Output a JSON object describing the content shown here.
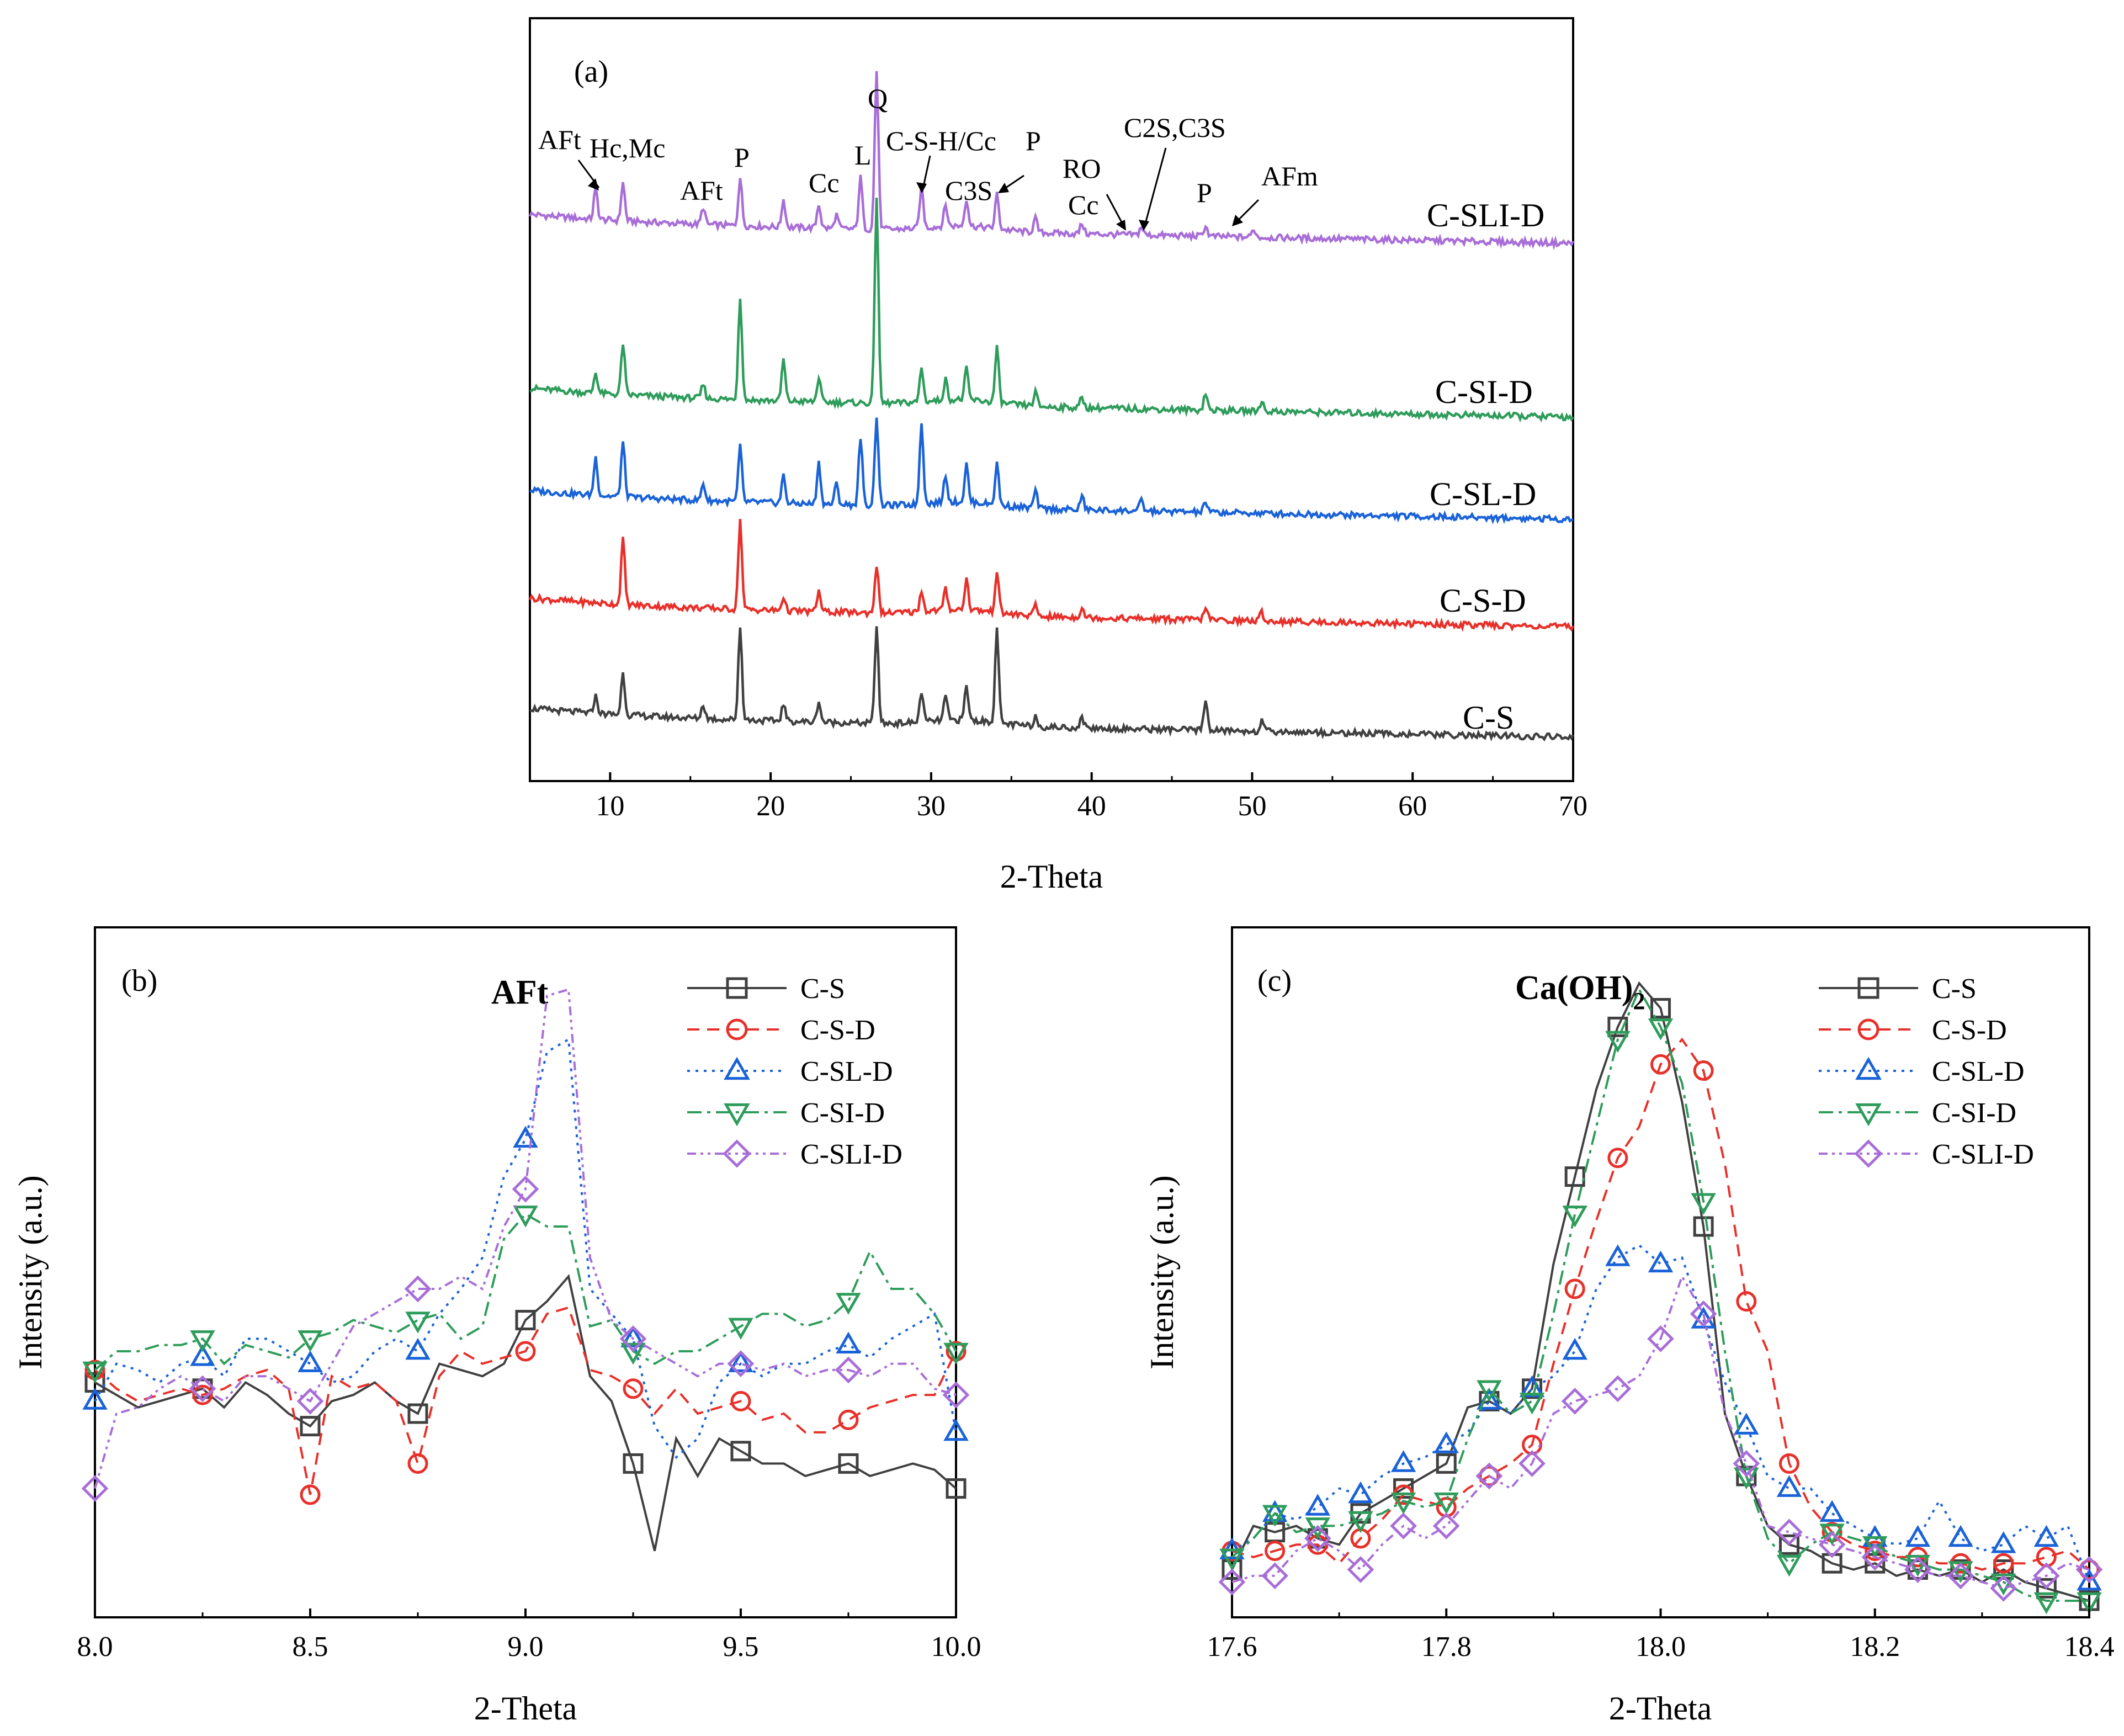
{
  "colors": {
    "C-S": "#404040",
    "C-S-D": "#e8302a",
    "C-SL-D": "#1a62d8",
    "C-SI-D": "#2e9c5a",
    "C-SLI-D": "#a86ed8"
  },
  "chart_data": [
    {
      "id": "a",
      "type": "line",
      "panel_label": "(a)",
      "xlabel": "2-Theta",
      "ylabel": "",
      "xlim": [
        5,
        70
      ],
      "xticks": [
        10,
        20,
        30,
        40,
        50,
        60,
        70
      ],
      "series": [
        {
          "name": "C-SLI-D",
          "baseline": 4,
          "slope": 0.3
        },
        {
          "name": "C-SI-D",
          "baseline": 3,
          "slope": 0.3
        },
        {
          "name": "C-SL-D",
          "baseline": 2,
          "slope": 0.3
        },
        {
          "name": "C-S-D",
          "baseline": 1,
          "slope": 0.3
        },
        {
          "name": "C-S",
          "baseline": 0,
          "slope": 0.3
        }
      ],
      "peaks": {
        "C-SLI-D": [
          [
            9.1,
            0.45
          ],
          [
            10.8,
            0.55
          ],
          [
            15.8,
            0.25
          ],
          [
            18.1,
            0.7
          ],
          [
            20.8,
            0.4
          ],
          [
            23.0,
            0.35
          ],
          [
            24.1,
            0.2
          ],
          [
            25.6,
            0.75
          ],
          [
            26.6,
            2.3
          ],
          [
            29.4,
            0.6
          ],
          [
            30.9,
            0.3
          ],
          [
            32.2,
            0.4
          ],
          [
            34.1,
            0.5
          ],
          [
            36.5,
            0.2
          ],
          [
            39.4,
            0.15
          ],
          [
            43.1,
            0.12
          ],
          [
            47.1,
            0.15
          ],
          [
            50.1,
            0.12
          ]
        ],
        "C-SI-D": [
          [
            9.1,
            0.3
          ],
          [
            10.8,
            0.75
          ],
          [
            15.8,
            0.2
          ],
          [
            18.1,
            1.5
          ],
          [
            20.8,
            0.6
          ],
          [
            23.0,
            0.35
          ],
          [
            26.6,
            3.0
          ],
          [
            29.4,
            0.5
          ],
          [
            30.9,
            0.3
          ],
          [
            32.2,
            0.45
          ],
          [
            34.1,
            0.8
          ],
          [
            36.5,
            0.2
          ],
          [
            39.4,
            0.15
          ],
          [
            47.1,
            0.25
          ],
          [
            50.6,
            0.15
          ]
        ],
        "C-SL-D": [
          [
            9.1,
            0.55
          ],
          [
            10.8,
            0.8
          ],
          [
            15.8,
            0.25
          ],
          [
            18.1,
            0.8
          ],
          [
            20.8,
            0.4
          ],
          [
            23.0,
            0.6
          ],
          [
            24.1,
            0.3
          ],
          [
            25.6,
            1.0
          ],
          [
            26.6,
            1.3
          ],
          [
            29.4,
            1.2
          ],
          [
            30.9,
            0.4
          ],
          [
            32.2,
            0.55
          ],
          [
            34.1,
            0.6
          ],
          [
            36.5,
            0.25
          ],
          [
            39.4,
            0.2
          ],
          [
            43.1,
            0.15
          ],
          [
            47.1,
            0.15
          ]
        ],
        "C-S-D": [
          [
            10.8,
            0.95
          ],
          [
            18.1,
            1.3
          ],
          [
            20.8,
            0.2
          ],
          [
            23.0,
            0.3
          ],
          [
            26.6,
            0.7
          ],
          [
            29.4,
            0.3
          ],
          [
            30.9,
            0.3
          ],
          [
            32.2,
            0.45
          ],
          [
            34.1,
            0.6
          ],
          [
            36.5,
            0.15
          ],
          [
            39.4,
            0.15
          ],
          [
            47.1,
            0.2
          ],
          [
            50.6,
            0.12
          ]
        ],
        "C-S": [
          [
            9.1,
            0.25
          ],
          [
            10.8,
            0.6
          ],
          [
            15.8,
            0.2
          ],
          [
            18.1,
            1.35
          ],
          [
            20.8,
            0.25
          ],
          [
            23.0,
            0.3
          ],
          [
            26.6,
            1.4
          ],
          [
            29.4,
            0.45
          ],
          [
            30.9,
            0.35
          ],
          [
            32.2,
            0.5
          ],
          [
            34.1,
            1.35
          ],
          [
            36.5,
            0.15
          ],
          [
            39.4,
            0.15
          ],
          [
            47.1,
            0.45
          ],
          [
            50.6,
            0.15
          ]
        ]
      },
      "annotations": [
        "AFt",
        "Hc,Mc",
        "AFt",
        "P",
        "Cc",
        "L",
        "Q",
        "C-S-H/Cc",
        "P",
        "C3S",
        "RO",
        "Cc",
        "C2S,C3S",
        "P",
        "AFm"
      ]
    },
    {
      "id": "b",
      "type": "line",
      "panel_label": "(b)",
      "title": "AFt",
      "xlabel": "2-Theta",
      "ylabel": "Intensity (a.u.)",
      "xlim": [
        8.0,
        10.0
      ],
      "ylim": [
        0,
        100
      ],
      "xticks": [
        8.0,
        8.5,
        9.0,
        9.5,
        10.0
      ],
      "x": [
        8.0,
        8.05,
        8.1,
        8.15,
        8.2,
        8.25,
        8.3,
        8.35,
        8.4,
        8.45,
        8.5,
        8.55,
        8.6,
        8.65,
        8.7,
        8.75,
        8.8,
        8.85,
        8.9,
        8.95,
        9.0,
        9.05,
        9.1,
        9.15,
        9.2,
        9.25,
        9.3,
        9.35,
        9.4,
        9.45,
        9.5,
        9.55,
        9.6,
        9.65,
        9.7,
        9.75,
        9.8,
        9.85,
        9.9,
        9.95,
        10.0
      ],
      "series": [
        {
          "name": "C-S",
          "values": [
            35,
            33,
            31,
            32,
            33,
            34,
            31,
            35,
            33,
            30,
            28,
            32,
            33,
            35,
            32,
            30,
            38,
            37,
            36,
            38,
            45,
            48,
            52,
            36,
            32,
            22,
            8,
            26,
            20,
            26,
            24,
            22,
            22,
            20,
            21,
            22,
            20,
            21,
            22,
            21,
            18
          ]
        },
        {
          "name": "C-S-D",
          "values": [
            37,
            34,
            32,
            33,
            34,
            33,
            34,
            36,
            37,
            34,
            17,
            36,
            34,
            35,
            32,
            22,
            36,
            40,
            38,
            39,
            40,
            46,
            47,
            37,
            36,
            34,
            30,
            34,
            30,
            31,
            32,
            29,
            30,
            27,
            27,
            29,
            31,
            32,
            33,
            33,
            40
          ]
        },
        {
          "name": "C-SL-D",
          "values": [
            32,
            38,
            37,
            35,
            38,
            39,
            36,
            42,
            42,
            40,
            38,
            35,
            36,
            40,
            42,
            40,
            46,
            50,
            55,
            68,
            74,
            88,
            90,
            50,
            46,
            42,
            28,
            23,
            26,
            35,
            38,
            36,
            38,
            38,
            40,
            41,
            39,
            42,
            44,
            46,
            27
          ]
        },
        {
          "name": "C-SI-D",
          "values": [
            37,
            40,
            40,
            41,
            41,
            42,
            38,
            41,
            40,
            39,
            42,
            43,
            45,
            44,
            43,
            45,
            46,
            42,
            44,
            58,
            62,
            60,
            60,
            44,
            45,
            40,
            38,
            40,
            40,
            42,
            44,
            46,
            46,
            44,
            45,
            48,
            56,
            50,
            50,
            46,
            40
          ]
        },
        {
          "name": "C-SLI-D",
          "values": [
            18,
            30,
            31,
            34,
            36,
            34,
            32,
            36,
            36,
            34,
            32,
            38,
            44,
            46,
            48,
            50,
            50,
            52,
            50,
            60,
            66,
            97,
            98,
            55,
            45,
            42,
            40,
            38,
            36,
            38,
            38,
            37,
            38,
            36,
            37,
            37,
            36,
            38,
            38,
            34,
            33
          ]
        }
      ],
      "markers_every": 5,
      "legend": [
        "C-S",
        "C-S-D",
        "C-SL-D",
        "C-SI-D",
        "C-SLI-D"
      ]
    },
    {
      "id": "c",
      "type": "line",
      "panel_label": "(c)",
      "title_main": "Ca(OH)",
      "title_sub": "2",
      "xlabel": "2-Theta",
      "ylabel": "Intensity (a.u.)",
      "xlim": [
        17.6,
        18.4
      ],
      "ylim": [
        0,
        100
      ],
      "xticks": [
        17.6,
        17.8,
        18.0,
        18.2,
        18.4
      ],
      "x": [
        17.6,
        17.62,
        17.64,
        17.66,
        17.68,
        17.7,
        17.72,
        17.74,
        17.76,
        17.78,
        17.8,
        17.82,
        17.84,
        17.86,
        17.88,
        17.9,
        17.92,
        17.94,
        17.96,
        17.98,
        18.0,
        18.02,
        18.04,
        18.06,
        18.08,
        18.1,
        18.12,
        18.14,
        18.16,
        18.18,
        18.2,
        18.22,
        18.24,
        18.26,
        18.28,
        18.3,
        18.32,
        18.34,
        18.36,
        18.38,
        18.4
      ],
      "series": [
        {
          "name": "C-S",
          "values": [
            5,
            12,
            11,
            12,
            10,
            9,
            14,
            16,
            18,
            20,
            22,
            31,
            32,
            30,
            34,
            54,
            68,
            82,
            92,
            99,
            95,
            80,
            60,
            30,
            20,
            12,
            9,
            8,
            6,
            5,
            6,
            4,
            5,
            4,
            5,
            3,
            5,
            3,
            2,
            1,
            0
          ]
        },
        {
          "name": "C-S-D",
          "values": [
            8,
            7,
            8,
            9,
            9,
            6,
            10,
            13,
            17,
            16,
            15,
            18,
            20,
            22,
            25,
            38,
            50,
            61,
            71,
            76,
            86,
            90,
            85,
            70,
            48,
            40,
            22,
            15,
            11,
            9,
            8,
            7,
            7,
            6,
            6,
            5,
            6,
            6,
            7,
            8,
            5
          ]
        },
        {
          "name": "C-SL-D",
          "values": [
            8,
            10,
            14,
            13,
            15,
            18,
            17,
            20,
            22,
            23,
            25,
            27,
            32,
            30,
            34,
            36,
            40,
            50,
            55,
            57,
            54,
            55,
            45,
            35,
            28,
            20,
            18,
            18,
            14,
            12,
            10,
            9,
            10,
            16,
            10,
            8,
            9,
            12,
            10,
            12,
            3
          ]
        },
        {
          "name": "C-SI-D",
          "values": [
            7,
            10,
            14,
            11,
            12,
            12,
            13,
            14,
            16,
            15,
            16,
            26,
            34,
            30,
            32,
            46,
            62,
            76,
            90,
            98,
            92,
            83,
            64,
            40,
            20,
            10,
            6,
            9,
            11,
            10,
            9,
            7,
            6,
            5,
            5,
            4,
            3,
            1,
            0,
            0,
            0
          ]
        },
        {
          "name": "C-SLI-D",
          "values": [
            3,
            4,
            4,
            8,
            10,
            8,
            5,
            9,
            12,
            10,
            12,
            16,
            20,
            18,
            22,
            30,
            32,
            33,
            34,
            36,
            42,
            52,
            46,
            30,
            22,
            12,
            11,
            10,
            9,
            8,
            7,
            6,
            5,
            4,
            4,
            3,
            2,
            3,
            4,
            6,
            5
          ]
        }
      ],
      "markers_every": 2,
      "legend": [
        "C-S",
        "C-S-D",
        "C-SL-D",
        "C-SI-D",
        "C-SLI-D"
      ]
    }
  ]
}
